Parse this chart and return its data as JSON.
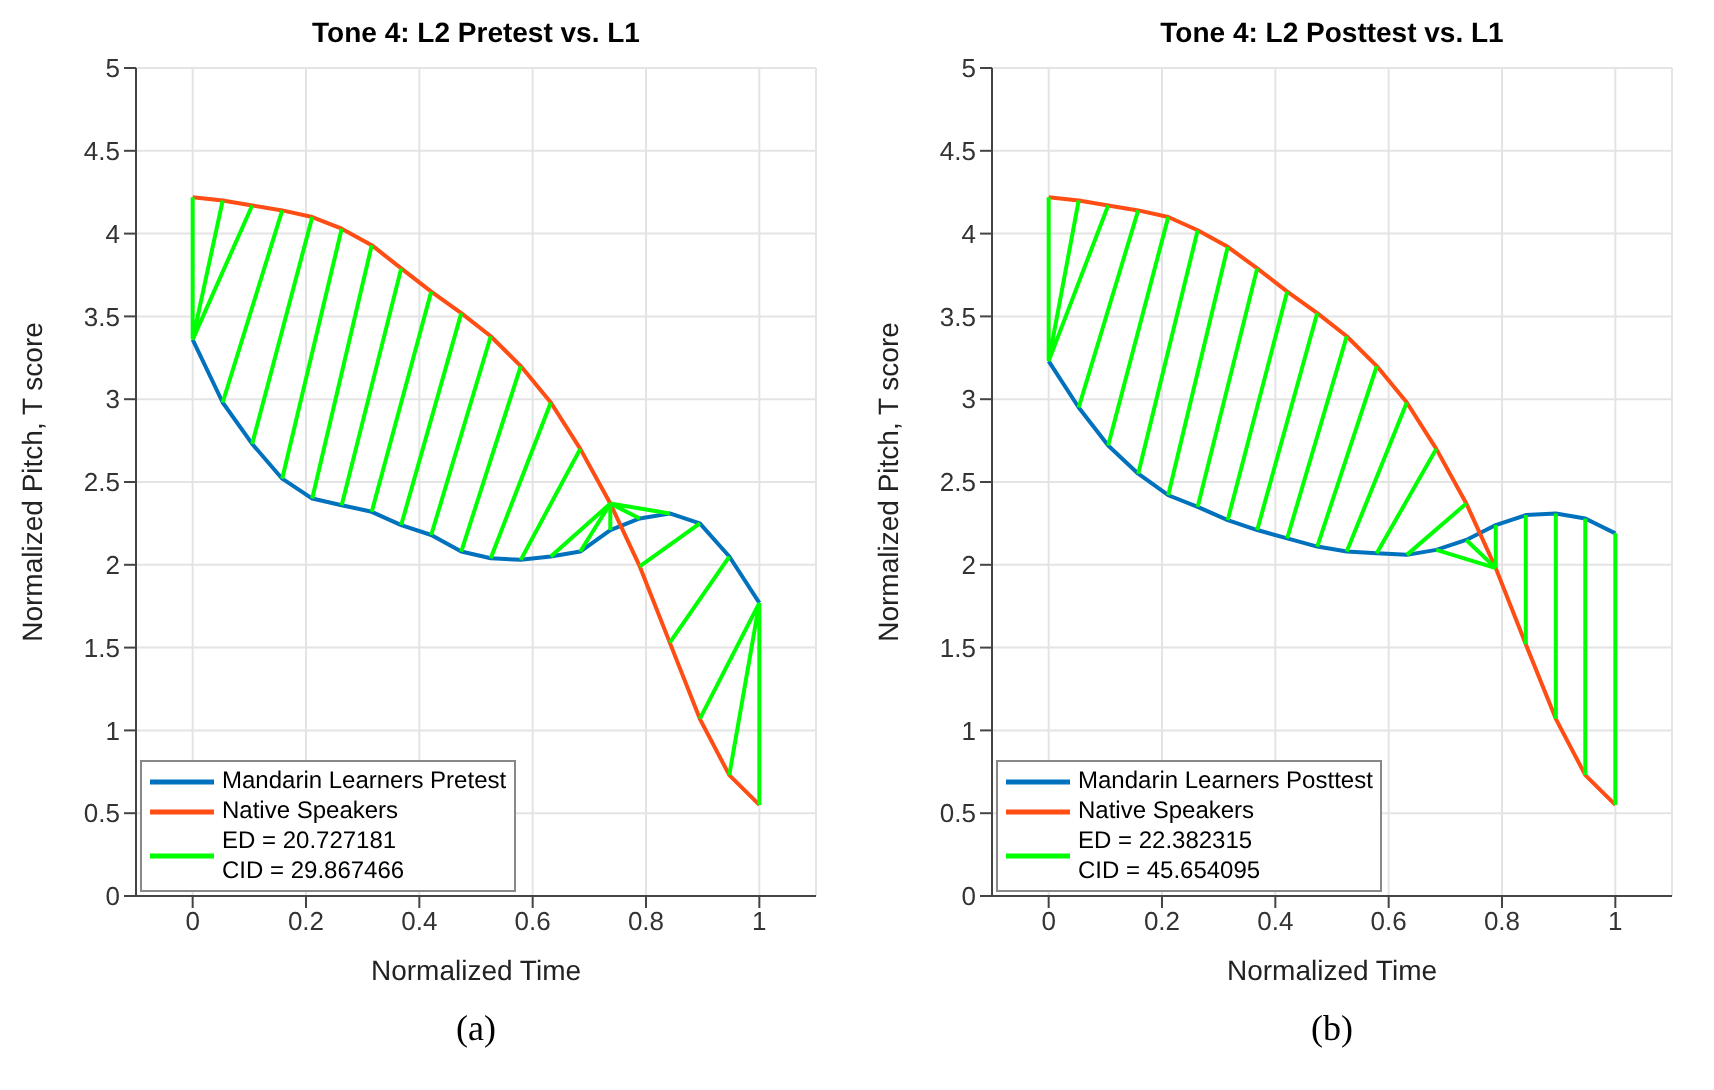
{
  "chart_data": [
    {
      "type": "line",
      "title": "Tone 4: L2 Pretest vs. L1",
      "xlabel": "Normalized Time",
      "ylabel": "Normalized Pitch, T score",
      "xlim": [
        -0.1,
        1.1
      ],
      "xticks": [
        0,
        0.2,
        0.4,
        0.6,
        0.8,
        1
      ],
      "ylim": [
        0,
        5
      ],
      "yticks": [
        0,
        0.5,
        1,
        1.5,
        2,
        2.5,
        3,
        3.5,
        4,
        4.5,
        5
      ],
      "grid": true,
      "legend": "bottom left",
      "marker": "none",
      "line_style": "solid",
      "annotations": [
        "(a)"
      ],
      "series": [
        {
          "name": "Mandarin Learners Pretest",
          "color": "#0072bd",
          "x": [
            0,
            0.053,
            0.105,
            0.158,
            0.211,
            0.263,
            0.316,
            0.368,
            0.421,
            0.474,
            0.526,
            0.579,
            0.632,
            0.684,
            0.737,
            0.789,
            0.842,
            0.895,
            0.947,
            1
          ],
          "values": [
            3.36,
            2.98,
            2.73,
            2.52,
            2.4,
            2.36,
            2.32,
            2.24,
            2.18,
            2.08,
            2.04,
            2.03,
            2.05,
            2.08,
            2.21,
            2.28,
            2.31,
            2.25,
            2.05,
            1.77
          ]
        },
        {
          "name": "Native Speakers",
          "color": "#ff4d14",
          "x": [
            0,
            0.053,
            0.105,
            0.158,
            0.211,
            0.263,
            0.316,
            0.368,
            0.421,
            0.474,
            0.526,
            0.579,
            0.632,
            0.684,
            0.737,
            0.789,
            0.842,
            0.895,
            0.947,
            1
          ],
          "values": [
            4.22,
            4.2,
            4.17,
            4.14,
            4.1,
            4.03,
            3.93,
            3.79,
            3.65,
            3.52,
            3.38,
            3.2,
            2.98,
            2.7,
            2.37,
            1.99,
            1.53,
            1.07,
            0.73,
            0.55
          ]
        },
        {
          "name": "ED = 20.727181\nCID = 29.867466",
          "color": "#00ff00",
          "x": [
            0,
            0,
            null,
            0,
            0.053,
            null,
            0,
            0.105,
            null,
            0.053,
            0.158,
            null,
            0.105,
            0.211,
            null,
            0.158,
            0.263,
            null,
            0.211,
            0.316,
            null,
            0.263,
            0.368,
            null,
            0.316,
            0.421,
            null,
            0.368,
            0.474,
            null,
            0.421,
            0.526,
            null,
            0.474,
            0.579,
            null,
            0.526,
            0.632,
            null,
            0.579,
            0.684,
            null,
            0.632,
            0.737,
            null,
            0.684,
            0.737,
            null,
            0.737,
            0.737,
            null,
            0.789,
            0.737,
            null,
            0.842,
            0.737,
            null,
            0.895,
            0.789,
            null,
            0.947,
            0.842,
            null,
            1,
            0.895,
            null,
            1,
            0.947,
            null,
            1,
            1
          ],
          "values": [
            3.36,
            4.22,
            null,
            3.36,
            4.2,
            null,
            3.36,
            4.17,
            null,
            2.98,
            4.14,
            null,
            2.73,
            4.1,
            null,
            2.52,
            4.03,
            null,
            2.4,
            3.93,
            null,
            2.36,
            3.79,
            null,
            2.32,
            3.65,
            null,
            2.24,
            3.52,
            null,
            2.18,
            3.38,
            null,
            2.08,
            3.2,
            null,
            2.04,
            2.98,
            null,
            2.03,
            2.7,
            null,
            2.05,
            2.37,
            null,
            2.08,
            2.37,
            null,
            2.21,
            2.37,
            null,
            2.28,
            2.37,
            null,
            2.31,
            2.37,
            null,
            2.25,
            1.99,
            null,
            2.05,
            1.53,
            null,
            1.77,
            1.07,
            null,
            1.77,
            0.73,
            null,
            1.77,
            0.55
          ]
        }
      ]
    },
    {
      "type": "line",
      "title": "Tone 4: L2 Posttest vs. L1",
      "xlabel": "Normalized Time",
      "ylabel": "Normalized Pitch, T score",
      "xlim": [
        -0.1,
        1.1
      ],
      "xticks": [
        0,
        0.2,
        0.4,
        0.6,
        0.8,
        1
      ],
      "ylim": [
        0,
        5
      ],
      "yticks": [
        0,
        0.5,
        1,
        1.5,
        2,
        2.5,
        3,
        3.5,
        4,
        4.5,
        5
      ],
      "grid": true,
      "legend": "bottom left",
      "marker": "none",
      "line_style": "solid",
      "annotations": [
        "(b)"
      ],
      "series": [
        {
          "name": "Mandarin Learners Posttest",
          "color": "#0072bd",
          "x": [
            0,
            0.053,
            0.105,
            0.158,
            0.211,
            0.263,
            0.316,
            0.368,
            0.421,
            0.474,
            0.526,
            0.579,
            0.632,
            0.684,
            0.737,
            0.789,
            0.842,
            0.895,
            0.947,
            1
          ],
          "values": [
            3.23,
            2.95,
            2.72,
            2.55,
            2.42,
            2.35,
            2.27,
            2.21,
            2.16,
            2.11,
            2.08,
            2.07,
            2.06,
            2.09,
            2.15,
            2.24,
            2.3,
            2.31,
            2.28,
            2.19
          ]
        },
        {
          "name": "Native Speakers",
          "color": "#ff4d14",
          "x": [
            0,
            0.053,
            0.105,
            0.158,
            0.211,
            0.263,
            0.316,
            0.368,
            0.421,
            0.474,
            0.526,
            0.579,
            0.632,
            0.684,
            0.737,
            0.789,
            0.842,
            0.895,
            0.947,
            1
          ],
          "values": [
            4.22,
            4.2,
            4.17,
            4.14,
            4.1,
            4.02,
            3.92,
            3.79,
            3.65,
            3.52,
            3.38,
            3.2,
            2.98,
            2.7,
            2.37,
            1.98,
            1.52,
            1.07,
            0.73,
            0.55
          ]
        },
        {
          "name": "ED = 22.382315\nCID = 45.654095",
          "color": "#00ff00",
          "x": [
            0,
            0,
            null,
            0,
            0.053,
            null,
            0,
            0.105,
            null,
            0.053,
            0.158,
            null,
            0.105,
            0.211,
            null,
            0.158,
            0.263,
            null,
            0.211,
            0.316,
            null,
            0.263,
            0.368,
            null,
            0.316,
            0.421,
            null,
            0.368,
            0.474,
            null,
            0.421,
            0.526,
            null,
            0.474,
            0.579,
            null,
            0.526,
            0.632,
            null,
            0.579,
            0.684,
            null,
            0.632,
            0.737,
            null,
            0.684,
            0.789,
            null,
            0.737,
            0.789,
            null,
            0.789,
            0.789,
            null,
            0.842,
            0.842,
            null,
            0.895,
            0.895,
            null,
            0.947,
            0.947,
            null,
            1,
            1
          ],
          "values": [
            3.23,
            4.22,
            null,
            3.23,
            4.2,
            null,
            3.23,
            4.17,
            null,
            2.95,
            4.14,
            null,
            2.72,
            4.1,
            null,
            2.55,
            4.02,
            null,
            2.42,
            3.92,
            null,
            2.35,
            3.79,
            null,
            2.27,
            3.65,
            null,
            2.21,
            3.52,
            null,
            2.16,
            3.38,
            null,
            2.11,
            3.2,
            null,
            2.08,
            2.98,
            null,
            2.07,
            2.7,
            null,
            2.06,
            2.37,
            null,
            2.09,
            1.98,
            null,
            2.15,
            1.98,
            null,
            2.24,
            1.98,
            null,
            2.3,
            1.52,
            null,
            2.31,
            1.07,
            null,
            2.28,
            0.73,
            null,
            2.19,
            0.55
          ]
        }
      ]
    }
  ]
}
